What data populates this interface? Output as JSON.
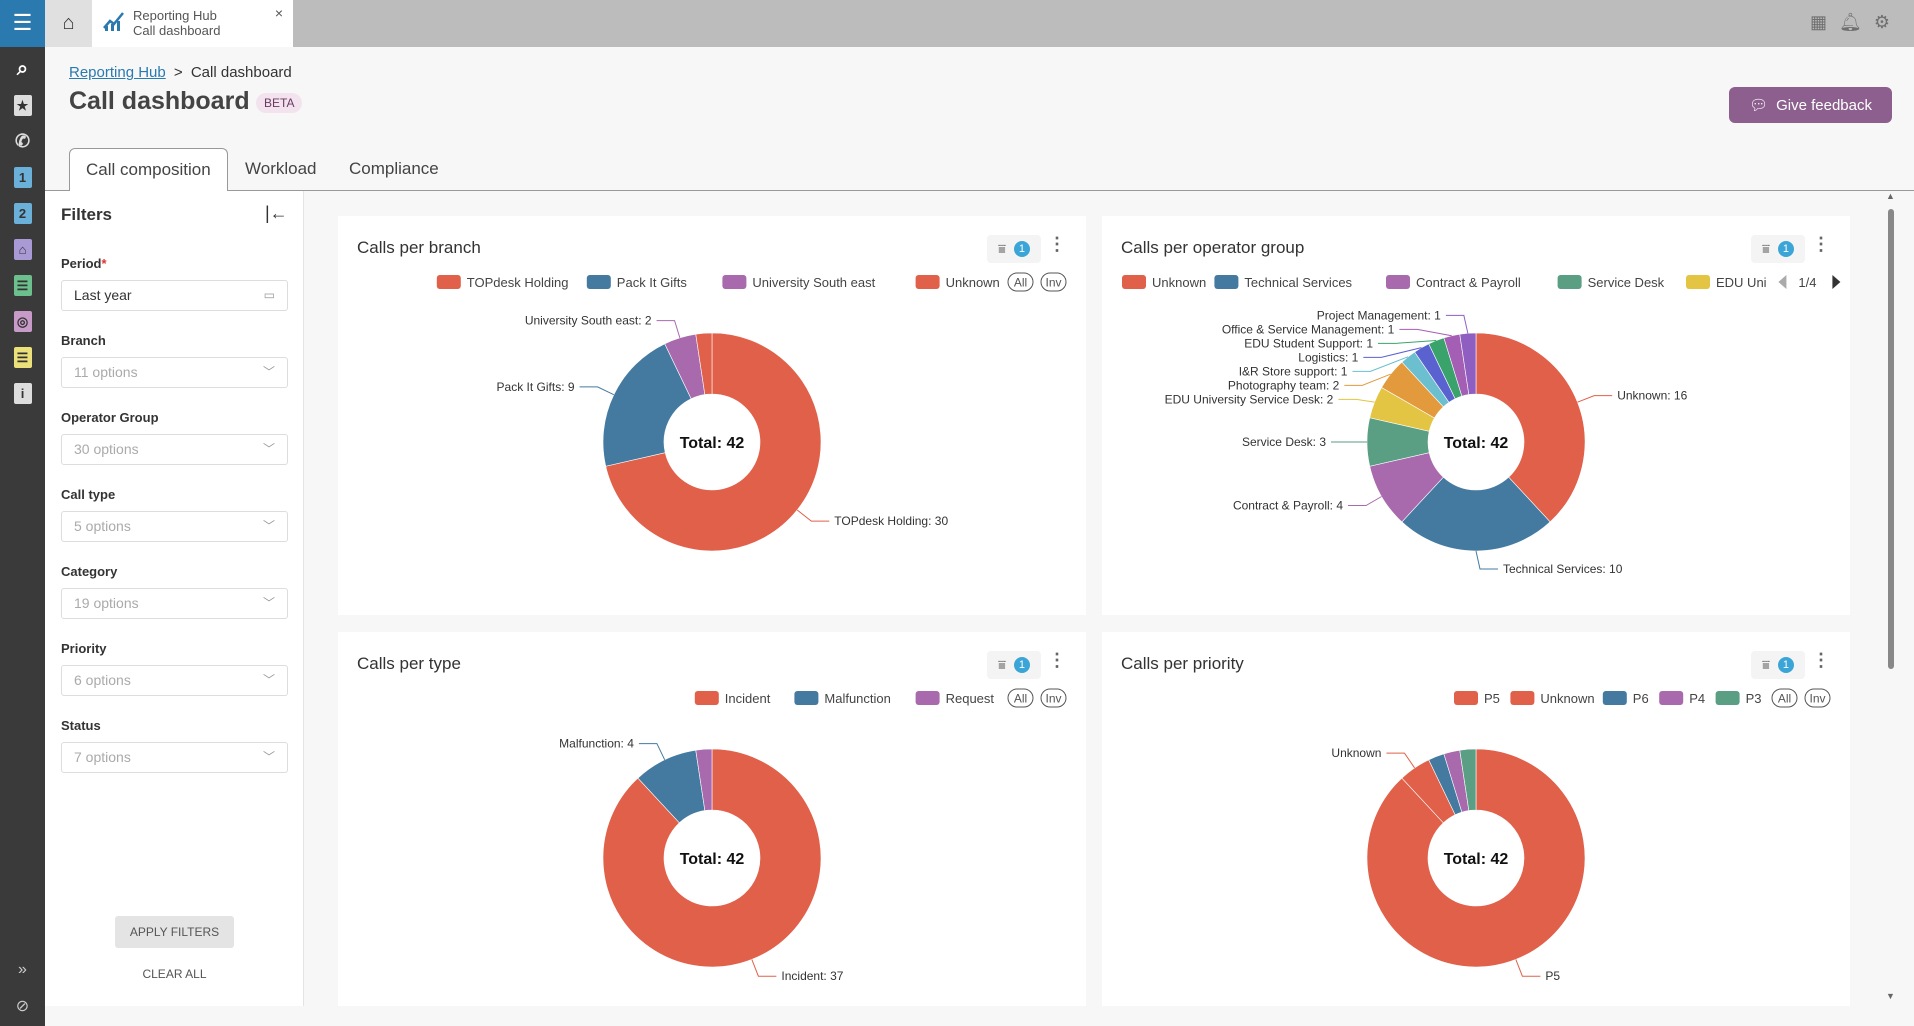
{
  "topbar": {
    "app_tab_title": "Reporting Hub",
    "app_tab_subtitle": "Call dashboard",
    "close": "×",
    "icons": [
      "layout-icon",
      "bell-icon",
      "user-settings-icon"
    ]
  },
  "breadcrumb": {
    "parent": "Reporting Hub",
    "separator": ">",
    "current": "Call dashboard"
  },
  "page": {
    "title": "Call dashboard",
    "badge": "BETA",
    "feedback_label": "Give feedback"
  },
  "tabs": [
    {
      "label": "Call composition",
      "active": true
    },
    {
      "label": "Workload"
    },
    {
      "label": "Compliance"
    }
  ],
  "filters": {
    "title": "Filters",
    "fields": [
      {
        "label": "Period",
        "required": "*",
        "value": "Last year"
      },
      {
        "label": "Branch",
        "value": "11 options"
      },
      {
        "label": "Operator Group",
        "value": "30 options"
      },
      {
        "label": "Call type",
        "value": "5 options"
      },
      {
        "label": "Category",
        "value": "19 options"
      },
      {
        "label": "Priority",
        "value": "6 options"
      },
      {
        "label": "Status",
        "value": "7 options"
      }
    ],
    "apply": "APPLY FILTERS",
    "clear": "CLEAR ALL"
  },
  "colors": {
    "accent": "#2a7ab0",
    "feedback": "#8c5f8e",
    "badge": "#3aa5d6"
  },
  "chart_data": [
    {
      "type": "pie",
      "title": "Calls per branch",
      "center_label": "Total: 42",
      "filter_count": "1",
      "legend_all": "All",
      "legend_inv": "Inv",
      "label_shows_value": true,
      "slices": [
        {
          "name": "TOPdesk Holding",
          "value": 30,
          "color": "#e0604a",
          "label": true
        },
        {
          "name": "Pack It Gifts",
          "value": 9,
          "color": "#457aa0",
          "label": true
        },
        {
          "name": "University South east",
          "value": 2,
          "color": "#a86aac",
          "label": true
        },
        {
          "name": "Unknown",
          "value": 1,
          "color": "#e0604a",
          "label": false
        }
      ],
      "legend": [
        "TOPdesk Holding",
        "Pack It Gifts",
        "University South east",
        "Unknown"
      ]
    },
    {
      "type": "pie",
      "title": "Calls per operator group",
      "center_label": "Total: 42",
      "filter_count": "1",
      "legend_all": "All",
      "legend_inv": "Inv",
      "legend_page": "1/4",
      "label_shows_value": true,
      "slices": [
        {
          "name": "Unknown",
          "value": 16,
          "color": "#e0604a",
          "label": true
        },
        {
          "name": "Technical Services",
          "value": 10,
          "color": "#457aa0",
          "label": true
        },
        {
          "name": "Contract & Payroll",
          "value": 4,
          "color": "#a86aac",
          "label": true
        },
        {
          "name": "Service Desk",
          "value": 3,
          "color": "#5a9e84",
          "label": true
        },
        {
          "name": "EDU University Service Desk",
          "value": 2,
          "color": "#e3c443",
          "label": true
        },
        {
          "name": "Photography team",
          "value": 2,
          "color": "#e39a3d",
          "label": true
        },
        {
          "name": "I&R Store support",
          "value": 1,
          "color": "#6bbfcf",
          "label": true
        },
        {
          "name": "Logistics",
          "value": 1,
          "color": "#5a62d0",
          "label": true
        },
        {
          "name": "EDU Student Support",
          "value": 1,
          "color": "#3aa36b",
          "label": true
        },
        {
          "name": "Office & Service Management",
          "value": 1,
          "color": "#a45fb5",
          "label": true
        },
        {
          "name": "Project Management",
          "value": 1,
          "color": "#8e5fc0",
          "label": true
        }
      ],
      "legend": [
        "Unknown",
        "Technical Services",
        "Contract & Payroll",
        "Service Desk",
        "EDU Uni"
      ]
    },
    {
      "type": "pie",
      "title": "Calls per type",
      "center_label": "Total: 42",
      "filter_count": "1",
      "legend_all": "All",
      "legend_inv": "Inv",
      "label_shows_value": true,
      "slices": [
        {
          "name": "Incident",
          "value": 37,
          "color": "#e0604a",
          "label": true
        },
        {
          "name": "Malfunction",
          "value": 4,
          "color": "#457aa0",
          "label": true
        },
        {
          "name": "Request",
          "value": 1,
          "color": "#a86aac",
          "label": false
        }
      ],
      "legend": [
        "Incident",
        "Malfunction",
        "Request"
      ]
    },
    {
      "type": "pie",
      "title": "Calls per priority",
      "center_label": "Total: 42",
      "filter_count": "1",
      "legend_all": "All",
      "legend_inv": "Inv",
      "label_shows_value": false,
      "slices": [
        {
          "name": "P5",
          "value": 37,
          "color": "#e0604a",
          "label": true
        },
        {
          "name": "Unknown",
          "value": 2,
          "color": "#e0604a",
          "label": true
        },
        {
          "name": "P6",
          "value": 1,
          "color": "#457aa0",
          "label": false
        },
        {
          "name": "P4",
          "value": 1,
          "color": "#a86aac",
          "label": false
        },
        {
          "name": "P3",
          "value": 1,
          "color": "#5a9e84",
          "label": false
        }
      ],
      "legend": [
        "P5",
        "Unknown",
        "P6",
        "P4",
        "P3"
      ]
    }
  ]
}
